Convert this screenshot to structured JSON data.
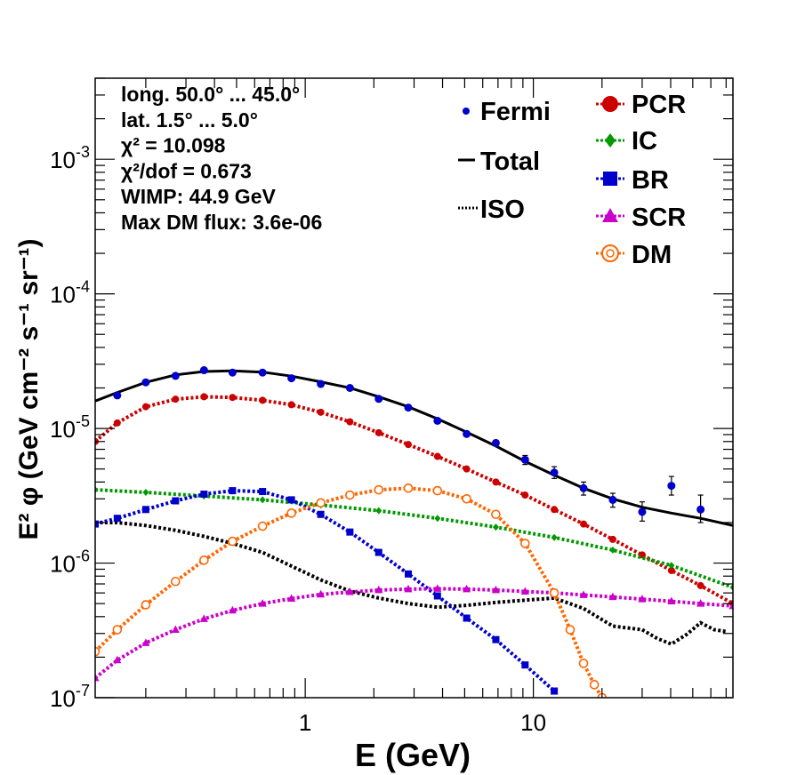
{
  "chart_data": {
    "type": "line",
    "xlabel": "E (GeV)",
    "ylabel": "E² φ (GeV cm⁻² s⁻¹ sr⁻¹)",
    "x_scale": "log",
    "y_scale": "log",
    "xlim": [
      0.12,
      75
    ],
    "ylim": [
      1e-07,
      0.004
    ],
    "x_ticks": [
      {
        "v": 1,
        "label": "1"
      },
      {
        "v": 10,
        "label": "10"
      }
    ],
    "y_ticks": [
      {
        "v": 1e-07,
        "base": "10",
        "exp": "-7"
      },
      {
        "v": 1e-06,
        "base": "10",
        "exp": "-6"
      },
      {
        "v": 1e-05,
        "base": "10",
        "exp": "-5"
      },
      {
        "v": 0.0001,
        "base": "10",
        "exp": "-4"
      },
      {
        "v": 0.001,
        "base": "10",
        "exp": "-3"
      }
    ],
    "info_lines": [
      "long. 50.0° ... 45.0°",
      "lat. 1.5° ... 5.0°",
      "χ² = 10.098",
      "χ²/dof = 0.673",
      "WIMP: 44.9 GeV",
      "Max DM flux: 3.6e-06"
    ],
    "legend_left": [
      {
        "name": "Fermi",
        "color": "#0000cc",
        "style": "point"
      },
      {
        "name": "Total",
        "color": "#000000",
        "style": "solid"
      },
      {
        "name": "ISO",
        "color": "#000000",
        "style": "dotted"
      }
    ],
    "legend_right": [
      {
        "name": "PCR",
        "color": "#cc0000",
        "style": "circle"
      },
      {
        "name": "IC",
        "color": "#009900",
        "style": "diamond"
      },
      {
        "name": "BR",
        "color": "#0000cc",
        "style": "square"
      },
      {
        "name": "SCR",
        "color": "#cc00cc",
        "style": "triangle"
      },
      {
        "name": "DM",
        "color": "#ff6600",
        "style": "open-circle"
      }
    ],
    "fermi": {
      "x": [
        0.15,
        0.2,
        0.27,
        0.36,
        0.48,
        0.65,
        0.87,
        1.17,
        1.57,
        2.1,
        2.83,
        3.8,
        5.1,
        6.85,
        9.2,
        12.35,
        16.6,
        22.3,
        30,
        40.3,
        54.1,
        72.7
      ],
      "y": [
        1.76e-05,
        2.2e-05,
        2.46e-05,
        2.71e-05,
        2.6e-05,
        2.6e-05,
        2.36e-05,
        2.14e-05,
        2e-05,
        1.66e-05,
        1.43e-05,
        1.14e-05,
        9.1e-06,
        7.8e-06,
        5.85e-06,
        4.7e-06,
        3.6e-06,
        2.95e-06,
        2.4e-06,
        3.75e-06,
        2.5e-06,
        null
      ],
      "err_lo": [
        null,
        null,
        null,
        null,
        null,
        null,
        null,
        null,
        null,
        null,
        null,
        null,
        null,
        null,
        5.4e-06,
        4.25e-06,
        3.2e-06,
        2.6e-06,
        2.05e-06,
        3.2e-06,
        2e-06,
        null
      ],
      "err_hi": [
        null,
        null,
        null,
        null,
        null,
        null,
        null,
        null,
        null,
        null,
        null,
        null,
        null,
        null,
        6.3e-06,
        5.2e-06,
        4e-06,
        3.3e-06,
        2.85e-06,
        4.4e-06,
        3.2e-06,
        null
      ]
    },
    "series": [
      {
        "name": "Total",
        "color": "#000000",
        "style": "solid",
        "x": [
          0.12,
          0.15,
          0.2,
          0.27,
          0.36,
          0.48,
          0.65,
          0.87,
          1.17,
          1.57,
          2.1,
          2.83,
          3.8,
          5.1,
          6.85,
          9.2,
          12.35,
          16.6,
          22.3,
          30,
          40.3,
          54.1,
          75
        ],
        "y": [
          1.6e-05,
          1.85e-05,
          2.2e-05,
          2.5e-05,
          2.65e-05,
          2.68e-05,
          2.62e-05,
          2.45e-05,
          2.22e-05,
          2e-05,
          1.72e-05,
          1.45e-05,
          1.18e-05,
          9.4e-06,
          7.4e-06,
          5.7e-06,
          4.5e-06,
          3.6e-06,
          3e-06,
          2.6e-06,
          2.35e-06,
          2.15e-06,
          1.9e-06
        ]
      },
      {
        "name": "ISO",
        "color": "#000000",
        "style": "dotted",
        "x": [
          0.12,
          0.15,
          0.2,
          0.27,
          0.36,
          0.48,
          0.65,
          0.87,
          1.17,
          1.57,
          2.1,
          2.83,
          3.8,
          5.1,
          6.85,
          9.2,
          12.35,
          16.6,
          22.3,
          30,
          35,
          40.3,
          47,
          54.1,
          62,
          70
        ],
        "y": [
          2e-06,
          2e-06,
          1.9e-06,
          1.75e-06,
          1.58e-06,
          1.4e-06,
          1.2e-06,
          9.5e-07,
          7.5e-07,
          6.2e-07,
          5.5e-07,
          5e-07,
          4.7e-07,
          4.85e-07,
          5.1e-07,
          5.3e-07,
          5.5e-07,
          4.6e-07,
          3.4e-07,
          3.2e-07,
          2.75e-07,
          2.5e-07,
          2.95e-07,
          3.6e-07,
          3.2e-07,
          3.1e-07
        ]
      },
      {
        "name": "PCR",
        "color": "#cc0000",
        "style": "circle",
        "x": [
          0.12,
          0.15,
          0.2,
          0.27,
          0.36,
          0.48,
          0.65,
          0.87,
          1.17,
          1.57,
          2.1,
          2.83,
          3.8,
          5.1,
          6.85,
          9.2,
          12.35,
          16.6,
          22.3,
          30,
          40.3,
          54.1,
          75
        ],
        "y": [
          8e-06,
          1.1e-05,
          1.45e-05,
          1.65e-05,
          1.72e-05,
          1.7e-05,
          1.62e-05,
          1.5e-05,
          1.32e-05,
          1.12e-05,
          9.3e-06,
          7.6e-06,
          6.2e-06,
          5e-06,
          4e-06,
          3.2e-06,
          2.5e-06,
          1.95e-06,
          1.5e-06,
          1.15e-06,
          8.8e-07,
          6.8e-07,
          5e-07
        ]
      },
      {
        "name": "IC",
        "color": "#009900",
        "style": "diamond",
        "x": [
          0.12,
          0.2,
          0.36,
          0.65,
          1.17,
          2.1,
          3.8,
          6.85,
          12.35,
          22.3,
          40.3,
          75
        ],
        "y": [
          3.5e-06,
          3.35e-06,
          3.15e-06,
          2.95e-06,
          2.7e-06,
          2.45e-06,
          2.15e-06,
          1.85e-06,
          1.55e-06,
          1.25e-06,
          9.6e-07,
          6.6e-07
        ]
      },
      {
        "name": "BR",
        "color": "#0000cc",
        "style": "square",
        "x": [
          0.12,
          0.15,
          0.2,
          0.27,
          0.36,
          0.48,
          0.65,
          0.87,
          1.17,
          1.57,
          2.1,
          2.83,
          3.8,
          5.1,
          6.85,
          9.2,
          12.35
        ],
        "y": [
          1.95e-06,
          2.15e-06,
          2.5e-06,
          2.9e-06,
          3.25e-06,
          3.45e-06,
          3.4e-06,
          2.95e-06,
          2.3e-06,
          1.7e-06,
          1.2e-06,
          8.3e-07,
          5.7e-07,
          3.9e-07,
          2.7e-07,
          1.75e-07,
          1.12e-07
        ]
      },
      {
        "name": "SCR",
        "color": "#cc00cc",
        "style": "triangle",
        "x": [
          0.12,
          0.15,
          0.2,
          0.27,
          0.36,
          0.48,
          0.65,
          0.87,
          1.17,
          1.57,
          2.1,
          2.83,
          3.8,
          5.1,
          6.85,
          9.2,
          12.35,
          16.6,
          22.3,
          30,
          40.3,
          54.1,
          75
        ],
        "y": [
          1.4e-07,
          1.9e-07,
          2.55e-07,
          3.2e-07,
          3.85e-07,
          4.45e-07,
          5e-07,
          5.45e-07,
          5.85e-07,
          6.1e-07,
          6.3e-07,
          6.4e-07,
          6.45e-07,
          6.4e-07,
          6.3e-07,
          6.15e-07,
          6e-07,
          5.8e-07,
          5.6e-07,
          5.4e-07,
          5.2e-07,
          5e-07,
          4.8e-07
        ]
      },
      {
        "name": "DM",
        "color": "#ff6600",
        "style": "open-circle",
        "x": [
          0.12,
          0.15,
          0.2,
          0.27,
          0.36,
          0.48,
          0.65,
          0.87,
          1.17,
          1.57,
          2.1,
          2.83,
          3.8,
          5.1,
          6.85,
          9.2,
          12.35,
          14.5,
          16.6,
          18.5,
          20
        ],
        "y": [
          2.2e-07,
          3.2e-07,
          4.9e-07,
          7.3e-07,
          1.05e-06,
          1.45e-06,
          1.88e-06,
          2.35e-06,
          2.8e-06,
          3.2e-06,
          3.5e-06,
          3.6e-06,
          3.45e-06,
          3e-06,
          2.3e-06,
          1.4e-06,
          6e-07,
          3.2e-07,
          1.8e-07,
          1.25e-07,
          1e-07
        ]
      }
    ]
  }
}
